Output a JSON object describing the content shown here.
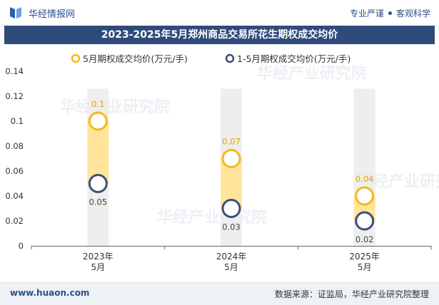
{
  "header": {
    "brand": "华经情报网",
    "slogan_left": "专业严谨",
    "slogan_right": "客观科学"
  },
  "footer": {
    "url": "www.huaon.com",
    "source": "数据来源：证监局，华经产业研究院整理"
  },
  "watermark": "华经产业研究院",
  "colors": {
    "title_band": "#2f4b7c",
    "series1_bar": "#ffe49a",
    "series1_ring": "#f5b81c",
    "series1_label": "#e0a000",
    "series2_ring": "#3d4f77",
    "bg_bar": "#eeeeee"
  },
  "chart_data": {
    "type": "bar",
    "title": "2023-2025年5月郑州商品交易所花生期权成交均价",
    "categories": [
      "2023年\n5月",
      "2024年\n5月",
      "2025年\n5月"
    ],
    "series": [
      {
        "name": "5月期权成交均价(万元/手)",
        "values": [
          0.1,
          0.07,
          0.04
        ],
        "labels": [
          "0.1",
          "0.07",
          "0.04"
        ]
      },
      {
        "name": "1-5月期权成交均价(万元/手)",
        "values": [
          0.05,
          0.03,
          0.02
        ],
        "labels": [
          "0.05",
          "0.03",
          "0.02"
        ]
      }
    ],
    "ylim": [
      0,
      0.14
    ],
    "yticks": [
      0,
      0.02,
      0.04,
      0.06,
      0.08,
      0.1,
      0.12,
      0.14
    ],
    "ytick_labels": [
      "0",
      "0.02",
      "0.04",
      "0.06",
      "0.08",
      "0.1",
      "0.12",
      "0.14"
    ],
    "xlabel": "",
    "ylabel": "",
    "legend": "top"
  }
}
